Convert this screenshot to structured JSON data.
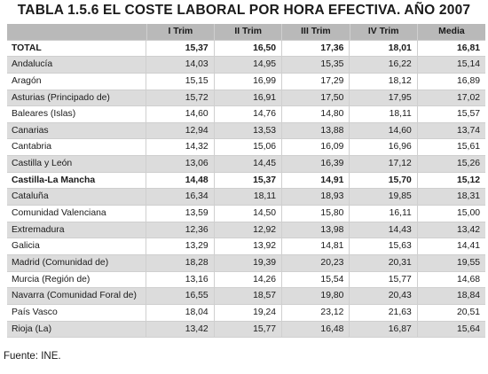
{
  "title": "TABLA 1.5.6 EL COSTE LABORAL POR HORA EFECTIVA. AÑO 2007",
  "columns": [
    "",
    "I Trim",
    "II Trim",
    "III Trim",
    "IV Trim",
    "Media"
  ],
  "rows": [
    {
      "region": "TOTAL",
      "values": [
        "15,37",
        "16,50",
        "17,36",
        "18,01",
        "16,81"
      ],
      "bold": true
    },
    {
      "region": "Andalucía",
      "values": [
        "14,03",
        "14,95",
        "15,35",
        "16,22",
        "15,14"
      ]
    },
    {
      "region": "Aragón",
      "values": [
        "15,15",
        "16,99",
        "17,29",
        "18,12",
        "16,89"
      ]
    },
    {
      "region": "Asturias (Principado de)",
      "values": [
        "15,72",
        "16,91",
        "17,50",
        "17,95",
        "17,02"
      ]
    },
    {
      "region": "Baleares (Islas)",
      "values": [
        "14,60",
        "14,76",
        "14,80",
        "18,11",
        "15,57"
      ]
    },
    {
      "region": "Canarias",
      "values": [
        "12,94",
        "13,53",
        "13,88",
        "14,60",
        "13,74"
      ]
    },
    {
      "region": "Cantabria",
      "values": [
        "14,32",
        "15,06",
        "16,09",
        "16,96",
        "15,61"
      ]
    },
    {
      "region": "Castilla y León",
      "values": [
        "13,06",
        "14,45",
        "16,39",
        "17,12",
        "15,26"
      ]
    },
    {
      "region": "Castilla-La Mancha",
      "values": [
        "14,48",
        "15,37",
        "14,91",
        "15,70",
        "15,12"
      ],
      "bold": true
    },
    {
      "region": "Cataluña",
      "values": [
        "16,34",
        "18,11",
        "18,93",
        "19,85",
        "18,31"
      ]
    },
    {
      "region": "Comunidad Valenciana",
      "values": [
        "13,59",
        "14,50",
        "15,80",
        "16,11",
        "15,00"
      ]
    },
    {
      "region": "Extremadura",
      "values": [
        "12,36",
        "12,92",
        "13,98",
        "14,43",
        "13,42"
      ]
    },
    {
      "region": "Galicia",
      "values": [
        "13,29",
        "13,92",
        "14,81",
        "15,63",
        "14,41"
      ]
    },
    {
      "region": "Madrid (Comunidad de)",
      "values": [
        "18,28",
        "19,39",
        "20,23",
        "20,31",
        "19,55"
      ]
    },
    {
      "region": "Murcia (Región de)",
      "values": [
        "13,16",
        "14,26",
        "15,54",
        "15,77",
        "14,68"
      ]
    },
    {
      "region": "Navarra (Comunidad Foral de)",
      "values": [
        "16,55",
        "18,57",
        "19,80",
        "20,43",
        "18,84"
      ]
    },
    {
      "region": "País Vasco",
      "values": [
        "18,04",
        "19,24",
        "23,12",
        "21,63",
        "20,51"
      ]
    },
    {
      "region": "Rioja (La)",
      "values": [
        "13,42",
        "15,77",
        "16,48",
        "16,87",
        "15,64"
      ]
    }
  ],
  "source": "Fuente: INE."
}
